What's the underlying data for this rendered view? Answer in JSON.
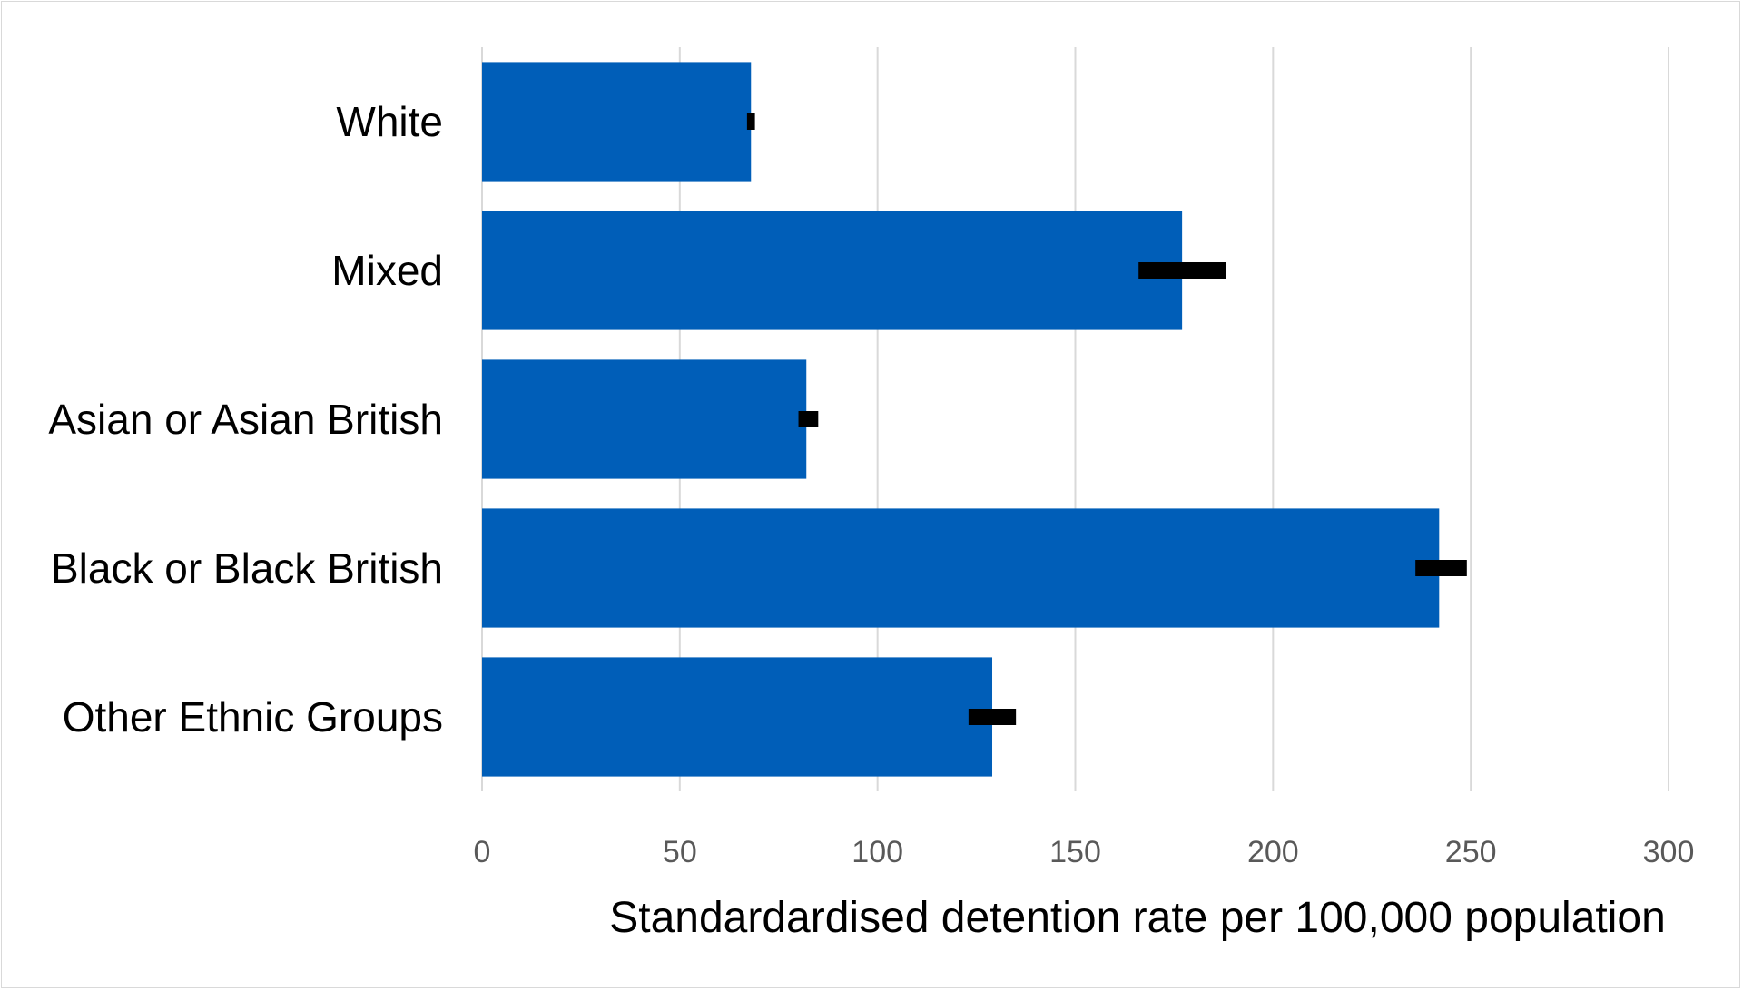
{
  "chart_data": {
    "type": "bar",
    "orientation": "horizontal",
    "title": "",
    "xlabel": "Standardardised detention rate per 100,000 population",
    "ylabel": "",
    "xlim": [
      0,
      300
    ],
    "xticks": [
      0,
      50,
      100,
      150,
      200,
      250,
      300
    ],
    "xtick_labels": [
      "0",
      "50",
      "100",
      "150",
      "200",
      "250",
      "300"
    ],
    "grid": true,
    "legend": "none",
    "categories": [
      "White",
      "Mixed",
      "Asian or Asian British",
      "Black or Black British",
      "Other Ethnic Groups"
    ],
    "values": [
      68,
      177,
      82,
      242,
      129
    ],
    "error_low": [
      67,
      166,
      80,
      236,
      123
    ],
    "error_high": [
      69,
      188,
      85,
      249,
      135
    ],
    "colors": {
      "bar": "#005EB8",
      "error_bar": "#000000",
      "grid": "#d9d9d9",
      "tick_text": "#595959"
    }
  }
}
